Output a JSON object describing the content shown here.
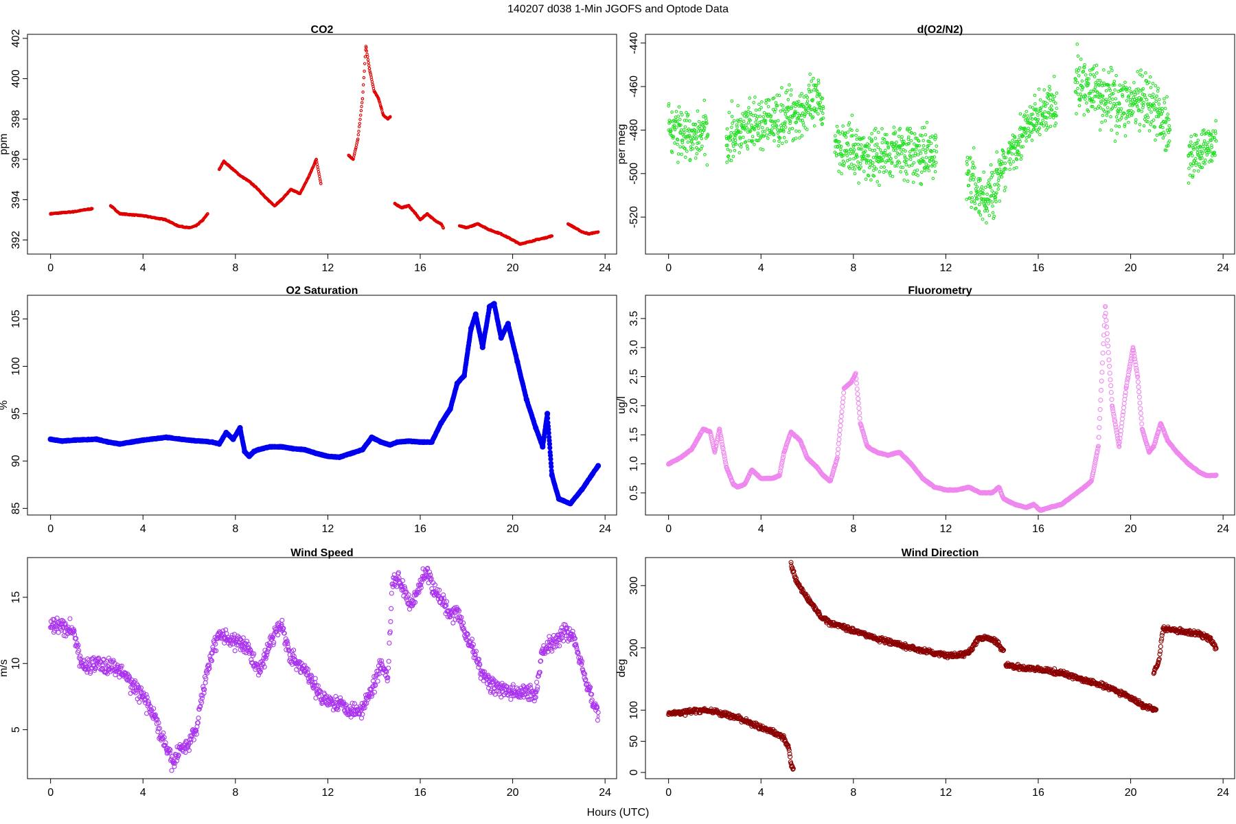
{
  "title": "140207   d038   1-Min  JGOFS and Optode Data",
  "xlabel": "Hours (UTC)",
  "chart_data": [
    {
      "id": "co2",
      "type": "scatter",
      "title": "CO2",
      "ylabel": "ppm",
      "color": "#e00000",
      "xlim": [
        -1,
        24.5
      ],
      "ylim": [
        391.3,
        402.2
      ],
      "xticks": [
        "0",
        "4",
        "8",
        "12",
        "16",
        "20",
        "24"
      ],
      "yticks": [
        "392",
        "394",
        "396",
        "398",
        "400",
        "402"
      ],
      "segments": [
        {
          "x": [
            0,
            0.5,
            1.0,
            1.5,
            1.8
          ],
          "y": [
            393.3,
            393.35,
            393.4,
            393.5,
            393.55
          ]
        },
        {
          "x": [
            2.6,
            3.0,
            3.5,
            4.0,
            4.5,
            5.0,
            5.5,
            6.0,
            6.3,
            6.6,
            6.8
          ],
          "y": [
            393.7,
            393.3,
            393.25,
            393.2,
            393.1,
            393.0,
            392.7,
            392.6,
            392.7,
            393.0,
            393.3
          ]
        },
        {
          "x": [
            7.3,
            7.5,
            7.8,
            8.2,
            8.6,
            9.0,
            9.3,
            9.7,
            10.0,
            10.4,
            10.8,
            11.2,
            11.5,
            11.7
          ],
          "y": [
            395.5,
            395.9,
            395.6,
            395.2,
            394.9,
            394.5,
            394.1,
            393.7,
            394.0,
            394.5,
            394.3,
            395.2,
            396.0,
            394.8
          ]
        },
        {
          "x": [
            12.9,
            13.1,
            13.3,
            13.5,
            13.65,
            13.8,
            14.0,
            14.2,
            14.4,
            14.6,
            14.7
          ],
          "y": [
            396.2,
            396.0,
            397.0,
            399.0,
            401.6,
            400.5,
            399.4,
            399.0,
            398.2,
            398.0,
            398.1
          ]
        },
        {
          "x": [
            14.9,
            15.2,
            15.5,
            15.8,
            16.0,
            16.3,
            16.6,
            16.9,
            17.0
          ],
          "y": [
            393.8,
            393.6,
            393.7,
            393.3,
            393.0,
            393.3,
            393.0,
            392.8,
            392.6
          ]
        },
        {
          "x": [
            17.7,
            18.0,
            18.5,
            19.0,
            19.5,
            20.0,
            20.3,
            20.7,
            21.0,
            21.4,
            21.7
          ],
          "y": [
            392.7,
            392.6,
            392.8,
            392.5,
            392.3,
            392.0,
            391.8,
            391.9,
            392.0,
            392.1,
            392.2
          ]
        },
        {
          "x": [
            22.4,
            22.7,
            23.0,
            23.3,
            23.7
          ],
          "y": [
            392.8,
            392.6,
            392.4,
            392.3,
            392.4
          ]
        }
      ]
    },
    {
      "id": "do2n2",
      "type": "scatter",
      "title": "d(O2/N2)",
      "ylabel": "per meg",
      "color": "#22e022",
      "xlim": [
        -1,
        24.5
      ],
      "ylim": [
        -537,
        -436
      ],
      "xticks": [
        "0",
        "4",
        "8",
        "12",
        "16",
        "20",
        "24"
      ],
      "yticks": [
        "-520",
        "-500",
        "-480",
        "-460",
        "-440"
      ],
      "segments": [
        {
          "x": [
            0,
            0.5,
            1.0,
            1.5,
            1.7
          ],
          "y": [
            -480,
            -481,
            -485,
            -480,
            -482
          ],
          "noise": 10
        },
        {
          "x": [
            2.5,
            3.5,
            4.5,
            5.5,
            6.5,
            6.7
          ],
          "y": [
            -483,
            -480,
            -476,
            -472,
            -468,
            -470
          ],
          "noise": 10
        },
        {
          "x": [
            7.2,
            8.0,
            9.0,
            10.0,
            11.0,
            11.6
          ],
          "y": [
            -485,
            -490,
            -492,
            -488,
            -493,
            -490
          ],
          "noise": 10
        },
        {
          "x": [
            12.9,
            13.3,
            13.7,
            14.0,
            14.3,
            14.6
          ],
          "y": [
            -500,
            -507,
            -513,
            -508,
            -502,
            -498
          ],
          "noise": 11
        },
        {
          "x": [
            14.7,
            15.3,
            15.9,
            16.5,
            16.8
          ],
          "y": [
            -490,
            -483,
            -475,
            -470,
            -470
          ],
          "noise": 9
        },
        {
          "x": [
            17.6,
            18.5,
            19.5,
            20.5,
            21.2,
            21.7
          ],
          "y": [
            -458,
            -462,
            -468,
            -468,
            -472,
            -480
          ],
          "noise": 11
        },
        {
          "x": [
            22.5,
            23.0,
            23.5,
            23.7
          ],
          "y": [
            -492,
            -490,
            -487,
            -485
          ],
          "noise": 8
        }
      ]
    },
    {
      "id": "o2sat",
      "type": "line",
      "title": "O2 Saturation",
      "ylabel": "%",
      "color": "#0000ee",
      "xlim": [
        -1,
        24.5
      ],
      "ylim": [
        84.3,
        107.5
      ],
      "xticks": [
        "0",
        "4",
        "8",
        "12",
        "16",
        "20",
        "24"
      ],
      "yticks": [
        "85",
        "90",
        "95",
        "100",
        "105"
      ],
      "segments": [
        {
          "x": [
            0,
            0.5,
            1.0,
            2.0,
            2.5,
            3.0,
            4.0,
            5.0,
            6.0,
            7.0,
            7.3,
            7.6,
            7.9,
            8.2,
            8.4,
            8.6,
            8.8,
            9.0,
            9.5,
            10.0,
            10.5,
            11.0,
            11.5,
            12.0,
            12.5,
            13.0,
            13.5,
            13.9,
            14.3,
            14.7,
            15.0,
            15.5,
            16.0,
            16.5,
            16.9,
            17.3,
            17.6,
            17.9,
            18.2,
            18.4,
            18.7,
            19.0,
            19.2,
            19.5,
            19.8,
            20.2,
            20.6,
            21.0,
            21.3,
            21.5,
            21.7,
            22.0,
            22.5,
            23.0,
            23.7
          ],
          "y": [
            92.3,
            92.1,
            92.2,
            92.3,
            92.0,
            91.8,
            92.2,
            92.5,
            92.2,
            92.0,
            91.8,
            93.0,
            92.3,
            93.5,
            91.0,
            90.5,
            91.0,
            91.2,
            91.5,
            91.5,
            91.3,
            91.2,
            90.8,
            90.5,
            90.4,
            90.8,
            91.2,
            92.5,
            92.0,
            91.7,
            92.0,
            92.1,
            92.0,
            92.0,
            94.0,
            95.5,
            98.2,
            99.0,
            104.0,
            105.5,
            102.0,
            106.3,
            106.6,
            103.0,
            104.5,
            100.5,
            96.5,
            93.5,
            91.5,
            95.0,
            88.5,
            86.0,
            85.5,
            87.0,
            89.5
          ]
        }
      ]
    },
    {
      "id": "fluor",
      "type": "line-circles",
      "title": "Fluorometry",
      "ylabel": "ug/l",
      "color": "#ee88ee",
      "xlim": [
        -1,
        24.5
      ],
      "ylim": [
        0.12,
        3.9
      ],
      "xticks": [
        "0",
        "4",
        "8",
        "12",
        "16",
        "20",
        "24"
      ],
      "yticks": [
        "0.5",
        "1.0",
        "1.5",
        "2.0",
        "2.5",
        "3.0",
        "3.5"
      ],
      "segments": [
        {
          "x": [
            0,
            0.5,
            1.0,
            1.5,
            1.8,
            2.0,
            2.2,
            2.5,
            2.8,
            3.0,
            3.3,
            3.6,
            4.0,
            4.5,
            4.8,
            5.0,
            5.3,
            5.7,
            6.0,
            6.4,
            6.7,
            7.0,
            7.3,
            7.6,
            7.9,
            8.1,
            8.3,
            8.6,
            9.0,
            9.5,
            10.0,
            10.5,
            11.0,
            11.5,
            12.0,
            12.5,
            13.0,
            13.5,
            14.0,
            14.3,
            14.5,
            15.0,
            15.5,
            15.8,
            16.1,
            16.5,
            17.0,
            17.5,
            18.0,
            18.3,
            18.6,
            18.9,
            19.2,
            19.5,
            19.8,
            20.1,
            20.3,
            20.5,
            20.8,
            21.0,
            21.3,
            21.6,
            22.0,
            22.5,
            23.0,
            23.3,
            23.7
          ],
          "y": [
            1.0,
            1.1,
            1.25,
            1.6,
            1.55,
            1.2,
            1.6,
            0.95,
            0.65,
            0.6,
            0.65,
            0.9,
            0.75,
            0.75,
            0.8,
            1.2,
            1.55,
            1.4,
            1.1,
            0.95,
            0.8,
            0.7,
            1.1,
            2.3,
            2.4,
            2.55,
            1.7,
            1.3,
            1.2,
            1.15,
            1.2,
            1.0,
            0.75,
            0.6,
            0.55,
            0.55,
            0.6,
            0.5,
            0.5,
            0.6,
            0.4,
            0.3,
            0.25,
            0.3,
            0.2,
            0.25,
            0.3,
            0.45,
            0.6,
            0.7,
            1.3,
            3.7,
            2.0,
            1.3,
            2.3,
            3.0,
            2.5,
            1.6,
            1.2,
            1.3,
            1.7,
            1.4,
            1.2,
            1.0,
            0.85,
            0.8,
            0.8
          ]
        }
      ]
    },
    {
      "id": "wspd",
      "type": "scatter",
      "title": "Wind Speed",
      "ylabel": "m/s",
      "color": "#aa33ee",
      "xlim": [
        -1,
        24.5
      ],
      "ylim": [
        1.3,
        18
      ],
      "xticks": [
        "0",
        "4",
        "8",
        "12",
        "16",
        "20",
        "24"
      ],
      "yticks": [
        "5",
        "10",
        "15"
      ],
      "segments": [
        {
          "x": [
            0,
            0.5,
            1.0,
            1.3,
            1.5,
            2.0,
            2.5,
            3.0,
            3.5,
            4.0,
            4.5,
            5.0,
            5.3,
            5.6,
            6.0,
            6.3,
            6.6,
            7.0,
            7.3,
            7.6,
            8.0,
            8.3,
            8.6,
            9.0,
            9.3,
            9.6,
            10.0,
            10.3,
            10.6,
            11.0,
            11.5,
            12.0,
            12.5,
            13.0,
            13.5,
            14.0,
            14.3,
            14.6,
            14.8,
            15.2,
            15.6,
            16.0,
            16.3,
            16.6,
            17.0,
            17.3,
            17.6,
            18.0,
            18.3,
            18.6,
            19.0,
            19.5,
            20.0,
            20.5,
            21.0,
            21.3,
            21.6,
            22.0,
            22.3,
            22.6,
            23.0,
            23.3,
            23.7
          ],
          "y": [
            12.8,
            12.8,
            12.5,
            10.0,
            9.8,
            10.0,
            9.8,
            9.5,
            8.5,
            7.5,
            6.0,
            3.5,
            2.5,
            3.5,
            4.0,
            5.0,
            8.0,
            11.0,
            12.3,
            12.0,
            11.5,
            11.5,
            11.0,
            9.5,
            10.5,
            12.0,
            13.0,
            11.0,
            10.0,
            9.5,
            8.0,
            7.2,
            7.0,
            6.5,
            6.5,
            8.5,
            10.0,
            9.0,
            16.5,
            16.0,
            14.5,
            16.0,
            17.0,
            15.5,
            14.5,
            13.5,
            14.0,
            12.0,
            11.0,
            9.5,
            8.5,
            8.0,
            7.8,
            7.8,
            7.8,
            11.0,
            11.5,
            12.0,
            12.5,
            12.0,
            10.0,
            8.0,
            6.0
          ],
          "noise": 0.5
        }
      ]
    },
    {
      "id": "wdir",
      "type": "scatter",
      "title": "Wind Direction",
      "ylabel": "deg",
      "color": "#8b0000",
      "xlim": [
        -1,
        24.5
      ],
      "ylim": [
        -10,
        345
      ],
      "xticks": [
        "0",
        "4",
        "8",
        "12",
        "16",
        "20",
        "24"
      ],
      "yticks": [
        "0",
        "50",
        "100",
        "200",
        "300"
      ],
      "segments": [
        {
          "x": [
            0,
            0.5,
            1.0,
            1.5,
            2.0,
            2.5,
            3.0,
            3.5,
            4.0,
            4.5,
            5.0,
            5.2,
            5.3,
            5.4
          ],
          "y": [
            95,
            96,
            98,
            100,
            98,
            92,
            88,
            80,
            72,
            65,
            55,
            40,
            15,
            5
          ],
          "noise": 3
        },
        {
          "x": [
            5.3,
            5.5,
            5.8,
            6.0,
            6.3,
            6.6,
            7.0,
            7.5,
            8.0,
            9.0,
            10.0,
            11.0,
            12.0,
            12.5,
            13.0,
            13.4,
            13.8,
            14.2,
            14.5
          ],
          "y": [
            335,
            310,
            290,
            280,
            265,
            250,
            240,
            235,
            228,
            215,
            205,
            195,
            188,
            188,
            192,
            215,
            215,
            210,
            195
          ],
          "noise": 3
        },
        {
          "x": [
            14.6,
            15.0,
            16.0,
            17.0,
            18.0,
            19.0,
            20.0,
            20.5,
            21.0,
            21.1
          ],
          "y": [
            172,
            170,
            165,
            160,
            148,
            137,
            120,
            108,
            102,
            100
          ],
          "noise": 3
        },
        {
          "x": [
            21.0,
            21.2,
            21.4,
            22.0,
            22.5,
            23.0,
            23.4,
            23.7
          ],
          "y": [
            160,
            175,
            230,
            228,
            225,
            222,
            215,
            200
          ],
          "noise": 3
        }
      ]
    }
  ]
}
